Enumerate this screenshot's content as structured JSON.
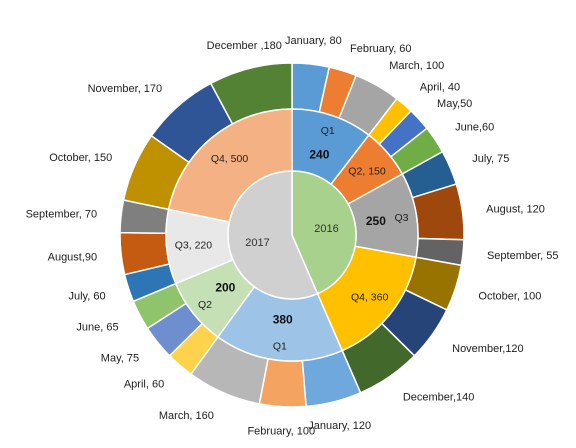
{
  "chart_data": {
    "type": "pie",
    "variant": "sunburst",
    "title": "",
    "years": [
      {
        "label": "2016",
        "color": "#a9d18e",
        "quarters": [
          {
            "label": "Q1",
            "total": "240",
            "color": "#5b9bd5",
            "months": [
              {
                "name": "January",
                "value": 80,
                "label": "January, 80",
                "color": "#5b9bd5"
              },
              {
                "name": "February",
                "value": 60,
                "label": "February, 60",
                "color": "#ed7d31"
              },
              {
                "name": "March",
                "value": 100,
                "label": "March, 100",
                "color": "#a5a5a5"
              }
            ]
          },
          {
            "label": "Q2, 150",
            "total": "",
            "color": "#ed7d31",
            "months": [
              {
                "name": "April",
                "value": 40,
                "label": "April, 40",
                "color": "#ffc000"
              },
              {
                "name": "May",
                "value": 50,
                "label": "May,50",
                "color": "#4472c4"
              },
              {
                "name": "June",
                "value": 60,
                "label": "June,60",
                "color": "#70ad47"
              }
            ]
          },
          {
            "label": "Q3",
            "total": "250",
            "color": "#a5a5a5",
            "months": [
              {
                "name": "July",
                "value": 75,
                "label": "July, 75",
                "color": "#255e91"
              },
              {
                "name": "August",
                "value": 120,
                "label": "August, 120",
                "color": "#9e480e"
              },
              {
                "name": "September",
                "value": 55,
                "label": "September, 55",
                "color": "#636363"
              }
            ]
          },
          {
            "label": "Q4, 360",
            "total": "",
            "color": "#ffc000",
            "months": [
              {
                "name": "October",
                "value": 100,
                "label": "October, 100",
                "color": "#997300"
              },
              {
                "name": "November",
                "value": 120,
                "label": "November,120",
                "color": "#264478"
              },
              {
                "name": "December",
                "value": 140,
                "label": "December,140",
                "color": "#43682b"
              }
            ]
          }
        ]
      },
      {
        "label": "2017",
        "color": "#d0d0d0",
        "quarters": [
          {
            "label": "Q1",
            "total": "380",
            "color": "#9dc3e6",
            "months": [
              {
                "name": "January",
                "value": 120,
                "label": "January, 120",
                "color": "#6fa8dc"
              },
              {
                "name": "February",
                "value": 100,
                "label": "February, 100",
                "color": "#f4a460"
              },
              {
                "name": "March",
                "value": 160,
                "label": "March, 160",
                "color": "#b7b7b7"
              }
            ]
          },
          {
            "label": "Q2",
            "total": "200",
            "color": "#c5e0b4",
            "months": [
              {
                "name": "April",
                "value": 60,
                "label": "April, 60",
                "color": "#ffd24d"
              },
              {
                "name": "May",
                "value": 75,
                "label": "May, 75",
                "color": "#6d8fd0"
              },
              {
                "name": "June",
                "value": 65,
                "label": "June, 65",
                "color": "#8fc46c"
              }
            ]
          },
          {
            "label": "Q3, 220",
            "total": "",
            "color": "#e8e8e8",
            "months": [
              {
                "name": "July",
                "value": 60,
                "label": "July, 60",
                "color": "#2e75b6"
              },
              {
                "name": "August",
                "value": 90,
                "label": "August,90",
                "color": "#c55a11"
              },
              {
                "name": "September",
                "value": 70,
                "label": "September, 70",
                "color": "#7f7f7f"
              }
            ]
          },
          {
            "label": "Q4, 500",
            "total": "",
            "color": "#f4b183",
            "months": [
              {
                "name": "October",
                "value": 150,
                "label": "October, 150",
                "color": "#bf9000"
              },
              {
                "name": "November",
                "value": 170,
                "label": "November, 170",
                "color": "#2f5597"
              },
              {
                "name": "December",
                "value": 180,
                "label": "December ,180",
                "color": "#548235"
              }
            ]
          }
        ]
      }
    ]
  }
}
